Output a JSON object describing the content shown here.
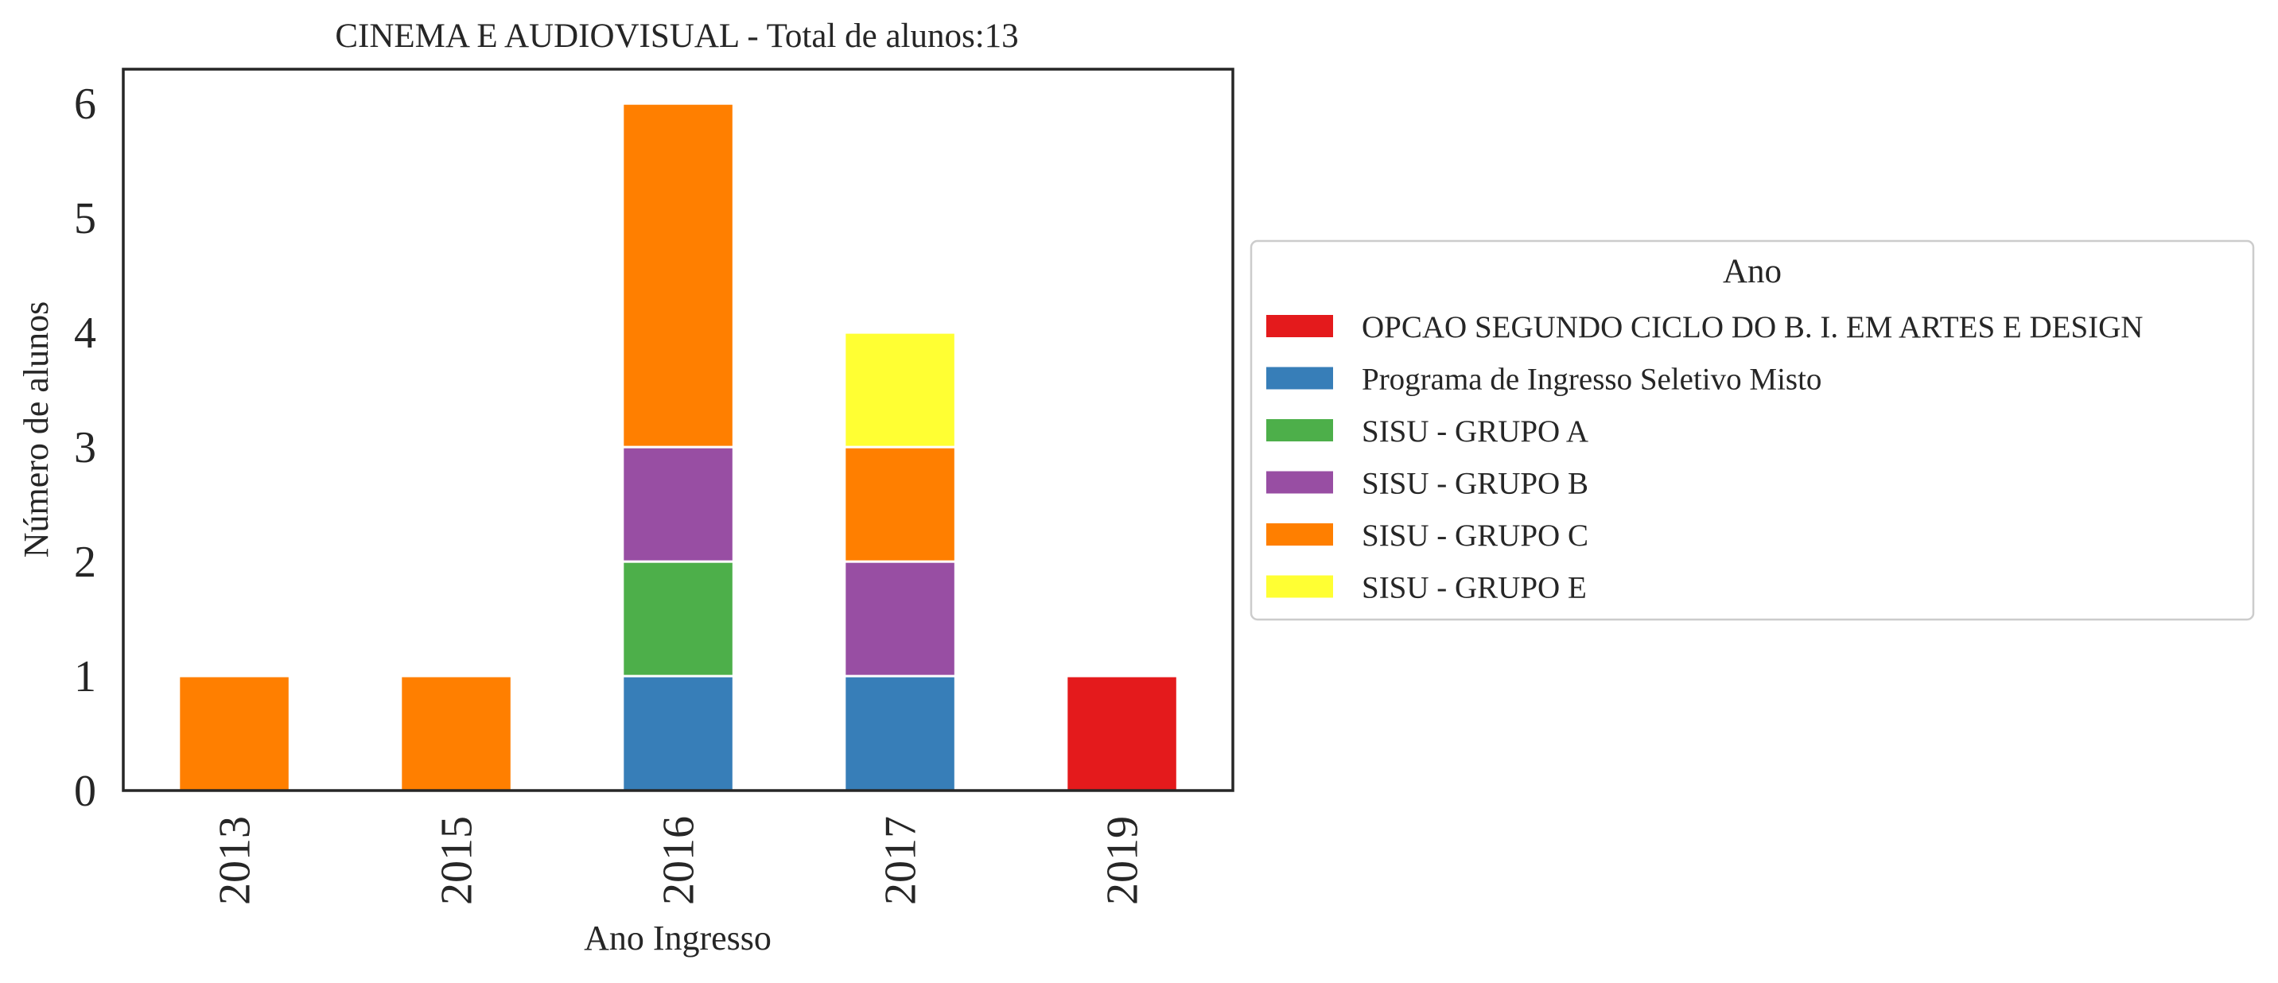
{
  "chart_data": {
    "type": "bar",
    "stacked": true,
    "title": "CINEMA E AUDIOVISUAL - Total de alunos:13",
    "xlabel": "Ano Ingresso",
    "ylabel": "Número de alunos",
    "categories": [
      "2013",
      "2015",
      "2016",
      "2017",
      "2019"
    ],
    "y_ticks": [
      "0",
      "1",
      "2",
      "3",
      "4",
      "5",
      "6"
    ],
    "ylim": [
      0,
      6.3
    ],
    "grid": false,
    "legend": {
      "title": "Ano",
      "placement": "right, outside plot"
    },
    "series": [
      {
        "name": "OPCAO SEGUNDO CICLO DO B. I. EM ARTES E DESIGN",
        "color": "#e41a1c",
        "values": [
          0,
          0,
          0,
          0,
          1
        ]
      },
      {
        "name": "Programa de Ingresso Seletivo Misto",
        "color": "#377eb8",
        "values": [
          0,
          0,
          1,
          1,
          0
        ]
      },
      {
        "name": "SISU - GRUPO A",
        "color": "#4daf4a",
        "values": [
          0,
          0,
          1,
          0,
          0
        ]
      },
      {
        "name": "SISU - GRUPO B",
        "color": "#984ea3",
        "values": [
          0,
          0,
          1,
          1,
          0
        ]
      },
      {
        "name": "SISU - GRUPO C",
        "color": "#ff7f00",
        "values": [
          1,
          1,
          3,
          1,
          0
        ]
      },
      {
        "name": "SISU - GRUPO E",
        "color": "#ffff33",
        "values": [
          0,
          0,
          0,
          1,
          0
        ]
      }
    ]
  }
}
